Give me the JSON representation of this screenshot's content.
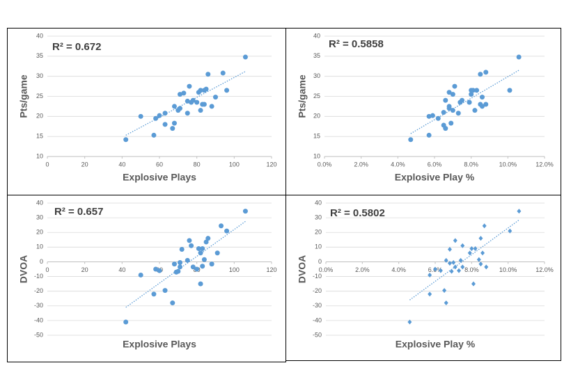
{
  "chart_data": [
    {
      "type": "scatter",
      "x_label": "Explosive Plays",
      "y_label": "Pts/game",
      "annotation": "R² = 0.672",
      "color": "#5b9bd5",
      "marker": "circle",
      "grid": true,
      "xlim": [
        0,
        120
      ],
      "xticks": [
        0,
        20,
        40,
        60,
        80,
        100,
        120
      ],
      "ylim": [
        10,
        40
      ],
      "yticks": [
        10,
        15,
        20,
        25,
        30,
        35,
        40
      ],
      "x": [
        42,
        50,
        57,
        58,
        60,
        63,
        63,
        67,
        68,
        68,
        70,
        71,
        71,
        73,
        75,
        75,
        76,
        77,
        78,
        80,
        81,
        82,
        82,
        83,
        84,
        84,
        85,
        86,
        88,
        90,
        94,
        96,
        106
      ],
      "y": [
        14.2,
        20,
        15.3,
        19.5,
        20.2,
        18,
        20.8,
        17,
        22.5,
        18.3,
        21.5,
        22,
        25.5,
        25.8,
        20.8,
        23.8,
        27.5,
        23.5,
        24,
        23.5,
        26,
        21.5,
        26.5,
        23,
        26.5,
        23,
        26.8,
        30.5,
        22.5,
        24.8,
        30.8,
        26.5,
        34.8
      ],
      "trendline": {
        "x": [
          42,
          106
        ],
        "y": [
          15.3,
          31.2
        ]
      }
    },
    {
      "type": "scatter",
      "x_label": "Explosive Play %",
      "y_label": "Pts/game",
      "annotation": "R² = 0.5858",
      "color": "#5b9bd5",
      "marker": "circle",
      "grid": true,
      "xlim": [
        0,
        12
      ],
      "xticks": [
        {
          "value": 0,
          "label": "0.0%"
        },
        {
          "value": 2,
          "label": "2.0%"
        },
        {
          "value": 4,
          "label": "4.0%"
        },
        {
          "value": 6,
          "label": "6.0%"
        },
        {
          "value": 8,
          "label": "8.0%"
        },
        {
          "value": 10,
          "label": "10.0%"
        },
        {
          "value": 12,
          "label": "12.0%"
        }
      ],
      "ylim": [
        10,
        40
      ],
      "yticks": [
        10,
        15,
        20,
        25,
        30,
        35,
        40
      ],
      "x": [
        4.7,
        5.7,
        5.7,
        5.9,
        6.2,
        6.5,
        6.5,
        6.6,
        6.6,
        6.8,
        6.8,
        6.8,
        6.9,
        7.0,
        7.0,
        7.1,
        7.3,
        7.4,
        7.5,
        7.9,
        8.0,
        8.0,
        8.1,
        8.2,
        8.3,
        8.5,
        8.5,
        8.6,
        8.6,
        8.8,
        8.8,
        10.1,
        10.6
      ],
      "y": [
        14.2,
        15.3,
        20,
        20.2,
        19.5,
        17.8,
        21,
        17,
        24,
        22.5,
        22,
        26,
        18.3,
        21.5,
        25.5,
        27.5,
        20.8,
        23.5,
        24,
        23.5,
        26.5,
        25.5,
        26.5,
        21.5,
        26.5,
        23,
        30.5,
        24.8,
        22.5,
        31,
        23,
        26.5,
        34.8
      ],
      "trendline": {
        "x": [
          4.7,
          10.6
        ],
        "y": [
          15.7,
          31.5
        ]
      }
    },
    {
      "type": "scatter",
      "x_label": "Explosive Plays",
      "y_label": "DVOA",
      "annotation": "R² = 0.657",
      "color": "#5b9bd5",
      "marker": "circle",
      "grid": true,
      "xlim": [
        0,
        120
      ],
      "xticks": [
        0,
        20,
        40,
        60,
        80,
        100,
        120
      ],
      "ylim": [
        -50,
        40
      ],
      "yticks": [
        -50,
        -40,
        -30,
        -20,
        -10,
        0,
        10,
        20,
        30,
        40
      ],
      "x": [
        42,
        50,
        57,
        58,
        60,
        63,
        67,
        68,
        69,
        70,
        71,
        71,
        72,
        75,
        76,
        77,
        78,
        80,
        81,
        82,
        82,
        83,
        83,
        84,
        85,
        86,
        88,
        91,
        93,
        96,
        106
      ],
      "y": [
        -41,
        -9,
        -22,
        -5,
        -6,
        -19.5,
        -28,
        -1.5,
        -7,
        -6.5,
        -0.5,
        -3.5,
        8.5,
        1,
        14.5,
        11,
        -3.5,
        -5,
        9,
        -15,
        6,
        9,
        -3,
        1.5,
        13.5,
        16,
        -1.5,
        6,
        24.5,
        21,
        34.5
      ],
      "trendline": {
        "x": [
          42,
          106
        ],
        "y": [
          -31,
          27.5
        ]
      }
    },
    {
      "type": "scatter",
      "x_label": "Explosive Play %",
      "y_label": "DVOA",
      "annotation": "R² = 0.5802",
      "color": "#5b9bd5",
      "marker": "diamond",
      "grid": true,
      "xlim": [
        0,
        12
      ],
      "xticks": [
        {
          "value": 0,
          "label": "0.0%"
        },
        {
          "value": 2,
          "label": "2.0%"
        },
        {
          "value": 4,
          "label": "4.0%"
        },
        {
          "value": 6,
          "label": "6.0%"
        },
        {
          "value": 8,
          "label": "8.0%"
        },
        {
          "value": 10,
          "label": "10.0%"
        },
        {
          "value": 12,
          "label": "12.0%"
        }
      ],
      "ylim": [
        -50,
        40
      ],
      "yticks": [
        -50,
        -40,
        -30,
        -20,
        -10,
        0,
        10,
        20,
        30,
        40
      ],
      "x": [
        4.6,
        5.7,
        5.7,
        6.0,
        6.3,
        6.5,
        6.6,
        6.6,
        6.8,
        6.8,
        6.9,
        7.0,
        7.1,
        7.1,
        7.3,
        7.4,
        7.5,
        7.5,
        7.9,
        8.0,
        8.1,
        8.2,
        8.4,
        8.5,
        8.5,
        8.6,
        8.7,
        8.8,
        10.1,
        10.6
      ],
      "y": [
        -41,
        -9,
        -22,
        -5,
        -6,
        -19.5,
        -28,
        1,
        8.5,
        -1,
        -6.5,
        -0.5,
        14.5,
        -3.5,
        -6,
        1,
        11,
        -3.5,
        6,
        9,
        -15,
        9,
        1.5,
        16,
        -1.5,
        6,
        24.5,
        -3.5,
        21,
        34.5
      ],
      "trendline": {
        "x": [
          4.6,
          10.6
        ],
        "y": [
          -26,
          28.5
        ]
      }
    }
  ]
}
